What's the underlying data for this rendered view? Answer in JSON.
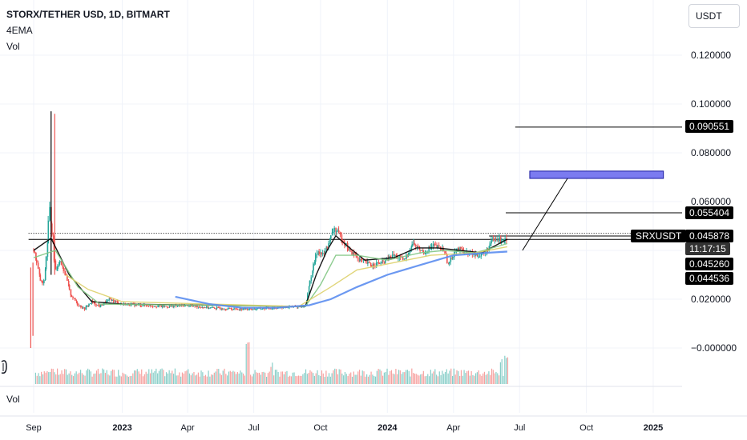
{
  "header": {
    "title": "STORX/TETHER USD, 1D, BITMART",
    "indicator_1": "4EMA",
    "indicator_2": "Vol"
  },
  "toolbar": {
    "currency": "USDT"
  },
  "volume_pane": {
    "label": "Vol"
  },
  "symbol_tag": "SRXUSDT",
  "countdown": "11:17:15",
  "price_tags": [
    {
      "value": "0.090551",
      "price": 0.090551
    },
    {
      "value": "0.055404",
      "price": 0.055404
    },
    {
      "value": "0.045878",
      "price": 0.045878
    },
    {
      "value": "0.045260",
      "price": 0.04526
    },
    {
      "value": "0.044536",
      "price": 0.044536
    }
  ],
  "colors": {
    "up": "#26a69a",
    "down": "#ef5350",
    "ema_fast": "#000000",
    "ema_mid": "#81c784",
    "ema_slow": "#ddd06a",
    "ema_long": "#5b8def",
    "zone": "#7b7bf0"
  },
  "chart_data": {
    "type": "candlestick",
    "title": "STORX/TETHER USD, 1D, BITMART",
    "ylim": [
      -0.0125,
      0.1325
    ],
    "y_ticks": [
      "0.120000",
      "0.100000",
      "0.080000",
      "0.060000",
      "0.020000",
      "−0.000000"
    ],
    "x_ticks": [
      {
        "label": "Sep",
        "date": "2022-09-01"
      },
      {
        "label": "2023",
        "date": "2023-01-01"
      },
      {
        "label": "Apr",
        "date": "2023-04-01"
      },
      {
        "label": "Jul",
        "date": "2023-07-01"
      },
      {
        "label": "Oct",
        "date": "2023-10-01"
      },
      {
        "label": "2024",
        "date": "2024-01-01"
      },
      {
        "label": "Apr",
        "date": "2024-04-01"
      },
      {
        "label": "Jul",
        "date": "2024-07-01"
      },
      {
        "label": "Oct",
        "date": "2024-10-01"
      },
      {
        "label": "2025",
        "date": "2025-01-01"
      }
    ],
    "price_path": [
      [
        "2022-09-01",
        0.04
      ],
      [
        "2022-09-05",
        0.036
      ],
      [
        "2022-09-10",
        0.028
      ],
      [
        "2022-09-15",
        0.026
      ],
      [
        "2022-09-20",
        0.042
      ],
      [
        "2022-09-23",
        0.058
      ],
      [
        "2022-09-27",
        0.046
      ],
      [
        "2022-10-01",
        0.032
      ],
      [
        "2022-10-08",
        0.036
      ],
      [
        "2022-10-15",
        0.03
      ],
      [
        "2022-10-22",
        0.022
      ],
      [
        "2022-11-01",
        0.018
      ],
      [
        "2022-11-10",
        0.016
      ],
      [
        "2022-11-20",
        0.019
      ],
      [
        "2022-12-01",
        0.017
      ],
      [
        "2022-12-15",
        0.02
      ],
      [
        "2023-01-01",
        0.018
      ],
      [
        "2023-02-01",
        0.0175
      ],
      [
        "2023-03-01",
        0.017
      ],
      [
        "2023-04-01",
        0.0175
      ],
      [
        "2023-05-01",
        0.0165
      ],
      [
        "2023-06-01",
        0.016
      ],
      [
        "2023-07-01",
        0.016
      ],
      [
        "2023-08-01",
        0.0165
      ],
      [
        "2023-09-01",
        0.017
      ],
      [
        "2023-09-10",
        0.017
      ],
      [
        "2023-09-20",
        0.032
      ],
      [
        "2023-09-27",
        0.04
      ],
      [
        "2023-10-05",
        0.038
      ],
      [
        "2023-10-15",
        0.045
      ],
      [
        "2023-10-20",
        0.049
      ],
      [
        "2023-10-28",
        0.046
      ],
      [
        "2023-11-10",
        0.04
      ],
      [
        "2023-11-25",
        0.036
      ],
      [
        "2023-12-10",
        0.034
      ],
      [
        "2023-12-25",
        0.035
      ],
      [
        "2024-01-10",
        0.038
      ],
      [
        "2024-01-25",
        0.036
      ],
      [
        "2024-02-05",
        0.043
      ],
      [
        "2024-02-20",
        0.039
      ],
      [
        "2024-03-05",
        0.042
      ],
      [
        "2024-03-20",
        0.04
      ],
      [
        "2024-03-25",
        0.034
      ],
      [
        "2024-04-05",
        0.041
      ],
      [
        "2024-04-20",
        0.039
      ],
      [
        "2024-05-05",
        0.038
      ],
      [
        "2024-05-15",
        0.039
      ],
      [
        "2024-05-25",
        0.044
      ],
      [
        "2024-06-05",
        0.0445
      ],
      [
        "2024-06-14",
        0.0452
      ]
    ],
    "spikes": [
      {
        "date": "2022-09-25",
        "high": 0.097,
        "low": 0.03
      },
      {
        "date": "2022-09-30",
        "high": 0.096,
        "low": 0.03
      },
      {
        "date": "2022-08-28",
        "high": 0.033,
        "low": 0.0
      },
      {
        "date": "2022-08-31",
        "high": 0.035,
        "low": 0.005
      }
    ],
    "ema_series": [
      {
        "color": "ema_fast",
        "points": [
          [
            "2022-09-01",
            0.04
          ],
          [
            "2022-09-25",
            0.045
          ],
          [
            "2022-10-20",
            0.03
          ],
          [
            "2022-11-20",
            0.019
          ],
          [
            "2023-01-01",
            0.018
          ],
          [
            "2023-09-10",
            0.017
          ],
          [
            "2023-09-25",
            0.03
          ],
          [
            "2023-10-10",
            0.04
          ],
          [
            "2023-10-22",
            0.046
          ],
          [
            "2023-11-10",
            0.041
          ],
          [
            "2023-12-01",
            0.036
          ],
          [
            "2024-01-10",
            0.037
          ],
          [
            "2024-02-10",
            0.041
          ],
          [
            "2024-03-10",
            0.041
          ],
          [
            "2024-04-10",
            0.04
          ],
          [
            "2024-05-10",
            0.039
          ],
          [
            "2024-06-14",
            0.0446
          ]
        ]
      },
      {
        "color": "ema_mid",
        "points": [
          [
            "2022-09-01",
            0.037
          ],
          [
            "2022-10-01",
            0.04
          ],
          [
            "2022-11-01",
            0.025
          ],
          [
            "2022-12-01",
            0.018
          ],
          [
            "2023-09-10",
            0.017
          ],
          [
            "2023-10-01",
            0.026
          ],
          [
            "2023-10-22",
            0.038
          ],
          [
            "2023-11-20",
            0.038
          ],
          [
            "2024-01-01",
            0.036
          ],
          [
            "2024-02-15",
            0.039
          ],
          [
            "2024-03-20",
            0.04
          ],
          [
            "2024-05-01",
            0.039
          ],
          [
            "2024-06-14",
            0.0428
          ]
        ]
      },
      {
        "color": "ema_slow",
        "points": [
          [
            "2022-10-15",
            0.03
          ],
          [
            "2022-11-15",
            0.024
          ],
          [
            "2023-01-01",
            0.019
          ],
          [
            "2023-09-01",
            0.017
          ],
          [
            "2023-10-15",
            0.025
          ],
          [
            "2023-11-20",
            0.032
          ],
          [
            "2024-01-10",
            0.035
          ],
          [
            "2024-03-01",
            0.038
          ],
          [
            "2024-05-01",
            0.039
          ],
          [
            "2024-06-14",
            0.0415
          ]
        ]
      },
      {
        "color": "ema_long",
        "points": [
          [
            "2023-03-15",
            0.021
          ],
          [
            "2023-05-01",
            0.018
          ],
          [
            "2023-06-15",
            0.0165
          ],
          [
            "2023-08-01",
            0.0165
          ],
          [
            "2023-09-15",
            0.0175
          ],
          [
            "2023-10-15",
            0.02
          ],
          [
            "2023-11-20",
            0.025
          ],
          [
            "2024-01-01",
            0.03
          ],
          [
            "2024-02-15",
            0.034
          ],
          [
            "2024-04-01",
            0.038
          ],
          [
            "2024-05-15",
            0.039
          ],
          [
            "2024-06-14",
            0.0395
          ]
        ]
      }
    ],
    "volume": {
      "start": "2022-09-03",
      "end": "2024-06-14",
      "base_level": 0.25,
      "spikes": [
        {
          "date": "2022-09-25",
          "level": 0.35
        },
        {
          "date": "2023-06-22",
          "level": 0.9
        },
        {
          "date": "2023-07-25",
          "level": 0.45
        },
        {
          "date": "2024-06-05",
          "level": 0.55
        },
        {
          "date": "2024-06-12",
          "level": 0.6
        }
      ]
    },
    "horizontal_lines": [
      {
        "price": 0.090551,
        "from": "2024-06-25",
        "style": "solid"
      },
      {
        "price": 0.055404,
        "from": "2024-06-12",
        "style": "solid"
      },
      {
        "price": 0.047,
        "from": "2022-08-25",
        "style": "dotted"
      },
      {
        "price": 0.0459,
        "from": "2024-05-20",
        "style": "solid"
      },
      {
        "price": 0.0445,
        "from": "2022-08-25",
        "style": "solid"
      }
    ],
    "target_zone": {
      "from": "2024-07-15",
      "to": "2025-01-15",
      "high": 0.0725,
      "low": 0.0695
    },
    "projection_line": {
      "from": [
        "2024-07-05",
        0.04
      ],
      "to": [
        "2024-09-05",
        0.0695
      ]
    }
  }
}
